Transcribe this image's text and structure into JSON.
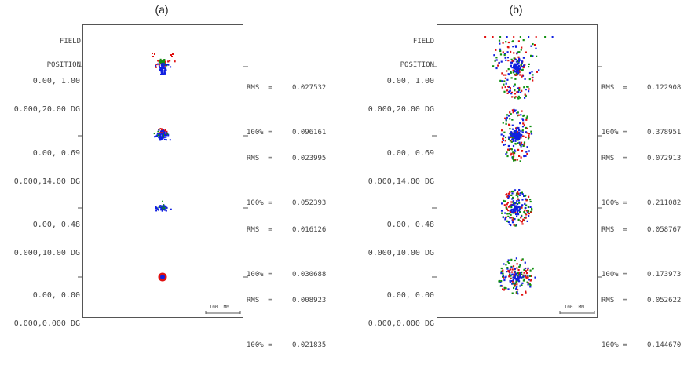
{
  "header_text": {
    "line1": "FIELD",
    "line2": "POSITION"
  },
  "scale_label": ".100  MM",
  "rms_label": "RMS  =",
  "pct_label": "100% =",
  "colors": {
    "red": "#e01010",
    "green": "#109010",
    "blue": "#1020e0",
    "frame": "#555555"
  },
  "panels": [
    {
      "title": "(a)",
      "fields": [
        {
          "line1": "0.00, 1.00",
          "line2": "0.000,20.00 DG",
          "rms": "0.027532",
          "pct": "0.096161"
        },
        {
          "line1": "0.00, 0.69",
          "line2": "0.000,14.00 DG",
          "rms": "0.023995",
          "pct": "0.052393"
        },
        {
          "line1": "0.00, 0.48",
          "line2": "0.000,10.00 DG",
          "rms": "0.016126",
          "pct": "0.030688"
        },
        {
          "line1": "0.00, 0.00",
          "line2": "0.000,0.000 DG",
          "rms": "0.008923",
          "pct": "0.021835"
        }
      ]
    },
    {
      "title": "(b)",
      "fields": [
        {
          "line1": "0.00, 1.00",
          "line2": "0.000,20.00 DG",
          "rms": "0.122908",
          "pct": "0.378951"
        },
        {
          "line1": "0.00, 0.69",
          "line2": "0.000,14.00 DG",
          "rms": "0.072913",
          "pct": "0.211082"
        },
        {
          "line1": "0.00, 0.48",
          "line2": "0.000,10.00 DG",
          "rms": "0.058767",
          "pct": "0.173973"
        },
        {
          "line1": "0.00, 0.00",
          "line2": "0.000,0.000 DG",
          "rms": "0.052622",
          "pct": "0.144670"
        }
      ]
    }
  ]
}
